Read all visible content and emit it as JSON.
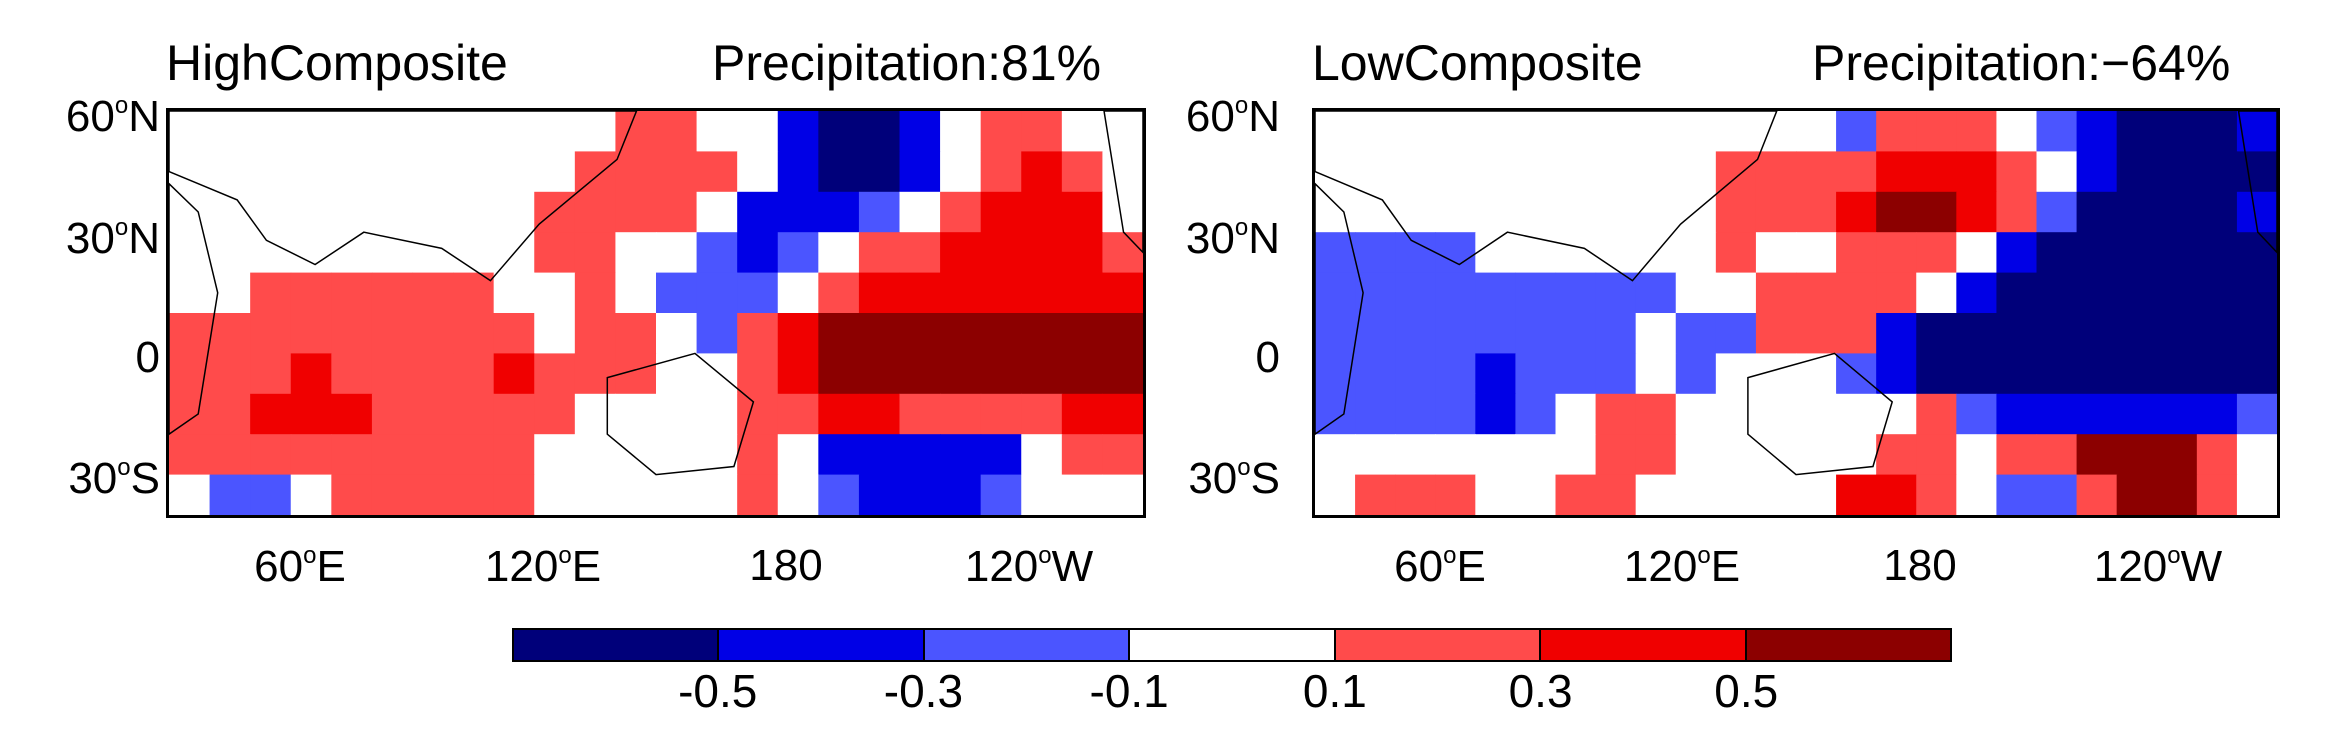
{
  "panels": [
    {
      "title_left": "HighComposite",
      "title_right": "Precipitation:81%",
      "lat_labels": [
        "60",
        "30",
        "0",
        "30"
      ],
      "lat_suffix": [
        "N",
        "N",
        "",
        "S"
      ],
      "lon_labels": [
        "60",
        "120",
        "180",
        "120"
      ],
      "lon_suffix": [
        "E",
        "E",
        "",
        "W"
      ]
    },
    {
      "title_left": "LowComposite",
      "title_right": "Precipitation:−64%",
      "lat_labels": [
        "60",
        "30",
        "0",
        "30"
      ],
      "lat_suffix": [
        "N",
        "N",
        "",
        "S"
      ],
      "lon_labels": [
        "60",
        "120",
        "180",
        "120"
      ],
      "lon_suffix": [
        "E",
        "E",
        "",
        "W"
      ]
    }
  ],
  "colorbar": {
    "colors": [
      "#00007a",
      "#0000e6",
      "#4b55ff",
      "#ffffff",
      "#ff4b4b",
      "#f00000",
      "#8c0000"
    ],
    "labels": [
      "-0.5",
      "-0.3",
      "-0.1",
      "0.1",
      "0.3",
      "0.5"
    ]
  },
  "map_fields": {
    "grid_cols": 24,
    "grid_rows": 10,
    "high_composite": [
      [
        0,
        0,
        0,
        0,
        0,
        0,
        0,
        0,
        0,
        0,
        0,
        1,
        1,
        0,
        0,
        -2,
        -3,
        -3,
        -2,
        0,
        1,
        1,
        0,
        0
      ],
      [
        0,
        0,
        0,
        0,
        0,
        0,
        0,
        0,
        0,
        0,
        1,
        1,
        1,
        1,
        0,
        -2,
        -3,
        -3,
        -2,
        0,
        1,
        2,
        1,
        0
      ],
      [
        0,
        0,
        0,
        0,
        0,
        0,
        0,
        0,
        0,
        1,
        1,
        1,
        1,
        0,
        -2,
        -2,
        -2,
        -1,
        0,
        1,
        2,
        2,
        2,
        0
      ],
      [
        0,
        0,
        0,
        0,
        0,
        0,
        0,
        0,
        0,
        1,
        1,
        0,
        0,
        -1,
        -2,
        -1,
        0,
        1,
        1,
        2,
        2,
        2,
        2,
        1
      ],
      [
        0,
        0,
        1,
        1,
        1,
        1,
        1,
        1,
        0,
        0,
        1,
        0,
        -1,
        -1,
        -1,
        0,
        1,
        2,
        2,
        2,
        2,
        2,
        2,
        2
      ],
      [
        1,
        1,
        1,
        1,
        1,
        1,
        1,
        1,
        1,
        0,
        1,
        1,
        0,
        -1,
        1,
        2,
        3,
        3,
        3,
        3,
        3,
        3,
        3,
        3
      ],
      [
        1,
        1,
        1,
        2,
        1,
        1,
        1,
        1,
        2,
        1,
        1,
        1,
        0,
        0,
        1,
        2,
        3,
        3,
        3,
        3,
        3,
        3,
        3,
        3
      ],
      [
        1,
        1,
        2,
        2,
        2,
        1,
        1,
        1,
        1,
        1,
        0,
        0,
        0,
        0,
        1,
        1,
        2,
        2,
        1,
        1,
        1,
        1,
        2,
        2
      ],
      [
        1,
        1,
        1,
        1,
        1,
        1,
        1,
        1,
        1,
        0,
        0,
        0,
        0,
        0,
        1,
        0,
        -2,
        -2,
        -2,
        -2,
        -2,
        0,
        1,
        1
      ],
      [
        0,
        -1,
        -1,
        0,
        1,
        1,
        1,
        1,
        1,
        0,
        0,
        0,
        0,
        0,
        1,
        0,
        -1,
        -2,
        -2,
        -2,
        -1,
        0,
        0,
        0
      ]
    ],
    "low_composite": [
      [
        0,
        0,
        0,
        0,
        0,
        0,
        0,
        0,
        0,
        0,
        0,
        0,
        0,
        -1,
        1,
        1,
        1,
        0,
        -1,
        -2,
        -3,
        -3,
        -3,
        -2
      ],
      [
        0,
        0,
        0,
        0,
        0,
        0,
        0,
        0,
        0,
        0,
        1,
        1,
        1,
        1,
        2,
        2,
        2,
        1,
        0,
        -2,
        -3,
        -3,
        -3,
        -3
      ],
      [
        0,
        0,
        0,
        0,
        0,
        0,
        0,
        0,
        0,
        0,
        1,
        1,
        1,
        2,
        3,
        3,
        2,
        1,
        -1,
        -3,
        -3,
        -3,
        -3,
        -2
      ],
      [
        -1,
        -1,
        -1,
        -1,
        0,
        0,
        0,
        0,
        0,
        0,
        1,
        0,
        0,
        1,
        1,
        1,
        0,
        -2,
        -3,
        -3,
        -3,
        -3,
        -3,
        -3
      ],
      [
        -1,
        -1,
        -1,
        -1,
        -1,
        -1,
        -1,
        -1,
        -1,
        0,
        0,
        1,
        1,
        1,
        1,
        0,
        -2,
        -3,
        -3,
        -3,
        -3,
        -3,
        -3,
        -3
      ],
      [
        -1,
        -1,
        -1,
        -1,
        -1,
        -1,
        -1,
        -1,
        0,
        -1,
        -1,
        1,
        1,
        1,
        -2,
        -3,
        -3,
        -3,
        -3,
        -3,
        -3,
        -3,
        -3,
        -3
      ],
      [
        -1,
        -1,
        -1,
        -1,
        -2,
        -1,
        -1,
        -1,
        0,
        -1,
        0,
        0,
        0,
        -1,
        -2,
        -3,
        -3,
        -3,
        -3,
        -3,
        -3,
        -3,
        -3,
        -3
      ],
      [
        -1,
        -1,
        -1,
        -1,
        -2,
        -1,
        0,
        1,
        1,
        0,
        0,
        0,
        0,
        0,
        0,
        1,
        -1,
        -2,
        -2,
        -2,
        -2,
        -2,
        -2,
        -1
      ],
      [
        0,
        0,
        0,
        0,
        0,
        0,
        0,
        1,
        1,
        0,
        0,
        0,
        0,
        0,
        1,
        1,
        0,
        1,
        1,
        3,
        3,
        3,
        1,
        0
      ],
      [
        0,
        1,
        1,
        1,
        0,
        0,
        1,
        1,
        0,
        0,
        0,
        0,
        0,
        2,
        2,
        1,
        0,
        -1,
        -1,
        1,
        3,
        3,
        1,
        0
      ]
    ]
  }
}
